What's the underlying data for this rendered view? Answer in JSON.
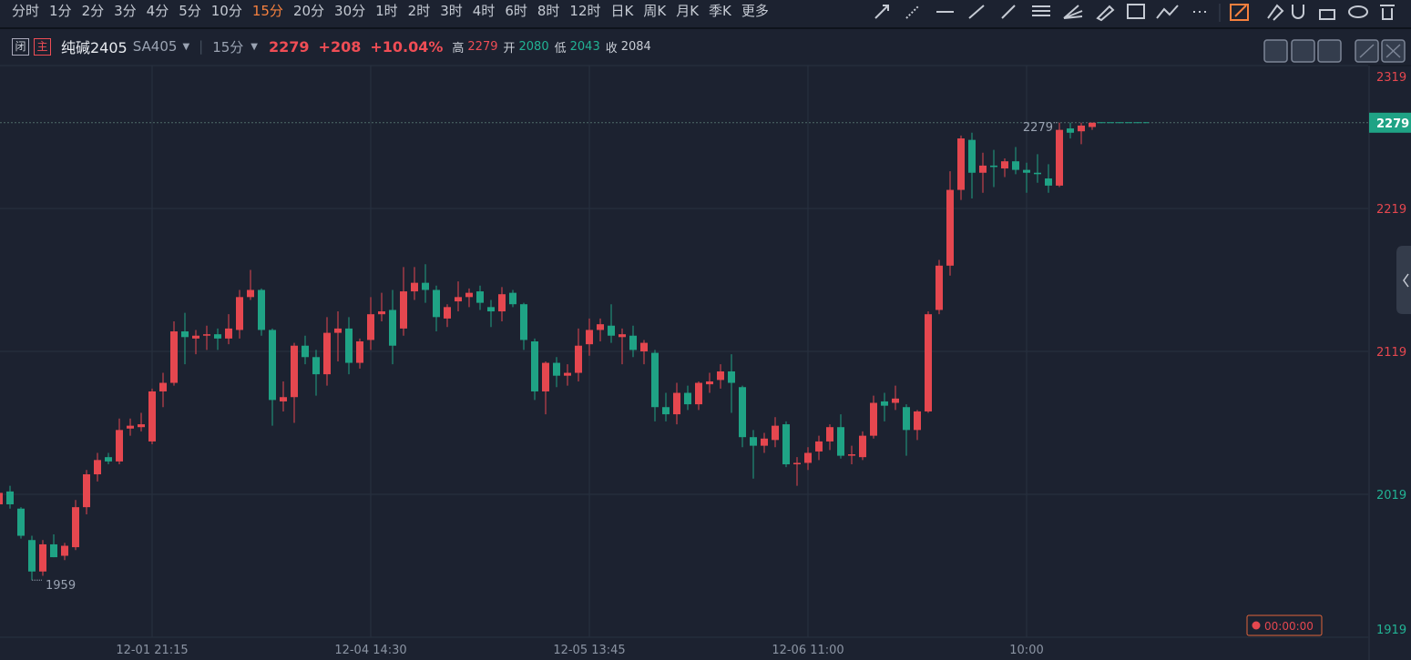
{
  "toolbar": {
    "periods": [
      "分时",
      "1分",
      "2分",
      "3分",
      "4分",
      "5分",
      "10分",
      "15分",
      "20分",
      "30分",
      "1时",
      "2时",
      "3时",
      "4时",
      "6时",
      "8时",
      "12时",
      "日K",
      "周K",
      "月K",
      "季K",
      "更多"
    ],
    "active": 7
  },
  "header": {
    "closed_badge": "闭",
    "main_badge": "主",
    "name": "纯碱2405",
    "code": "SA405",
    "period": "15分",
    "price": 2279,
    "change": "+208",
    "change_pct": "+10.04%",
    "high_label": "高",
    "high": 2279,
    "open_label": "开",
    "open": 2080,
    "low_label": "低",
    "low": 2043,
    "close_label": "收",
    "close": 2084
  },
  "chart_data": {
    "type": "candlestick",
    "categories": [
      null,
      null,
      null,
      null,
      null,
      null,
      null,
      null,
      null,
      null,
      null,
      null,
      null,
      null,
      "12-01 21:15",
      null,
      null,
      null,
      null,
      null,
      null,
      null,
      null,
      null,
      null,
      null,
      null,
      null,
      null,
      null,
      null,
      null,
      null,
      null,
      "12-04 14:30",
      null,
      null,
      null,
      null,
      null,
      null,
      null,
      null,
      null,
      null,
      null,
      null,
      null,
      null,
      null,
      null,
      null,
      null,
      null,
      "12-05 13:45",
      null,
      null,
      null,
      null,
      null,
      null,
      null,
      null,
      null,
      null,
      null,
      null,
      null,
      null,
      null,
      null,
      null,
      null,
      null,
      "12-06 11:00",
      null,
      null,
      null,
      null,
      null,
      null,
      null,
      null,
      null,
      null,
      null,
      null,
      null,
      null,
      null,
      null,
      null,
      null,
      null,
      "10:00",
      null,
      null,
      null,
      null,
      null,
      null
    ],
    "open": [
      2012,
      2021,
      2009,
      1987,
      1965,
      1984,
      1976,
      1982,
      2010,
      2033,
      2045,
      2042,
      2065,
      2066,
      2056,
      2091,
      2097,
      2133,
      2128,
      2130,
      2131,
      2128,
      2134,
      2157,
      2162,
      2134,
      2084,
      2087,
      2123,
      2115,
      2103,
      2132,
      2135,
      2111,
      2127,
      2145,
      2148,
      2135,
      2161,
      2167,
      2162,
      2142,
      2154,
      2157,
      2161,
      2150,
      2147,
      2160,
      2152,
      2126,
      2091,
      2111,
      2102,
      2104,
      2124,
      2134,
      2137,
      2129,
      2130,
      2119,
      2118,
      2080,
      2075,
      2090,
      2082,
      2096,
      2099,
      2105,
      2094,
      2059,
      2053,
      2057,
      2068,
      2040,
      2041,
      2049,
      2056,
      2066,
      2046,
      2045,
      2060,
      2084,
      2083,
      2080,
      2064,
      2077,
      2148,
      2179,
      2232,
      2267,
      2244,
      2249,
      2247,
      2252,
      2246,
      2244,
      2240,
      2235,
      2275,
      2273,
      2276
    ],
    "high": [
      2022,
      2025,
      2010,
      1990,
      1987,
      1991,
      1985,
      2015,
      2036,
      2048,
      2048,
      2072,
      2072,
      2076,
      2093,
      2104,
      2140,
      2146,
      2134,
      2137,
      2135,
      2145,
      2162,
      2176,
      2163,
      2135,
      2098,
      2125,
      2130,
      2120,
      2143,
      2147,
      2143,
      2128,
      2157,
      2160,
      2162,
      2178,
      2178,
      2180,
      2165,
      2152,
      2168,
      2163,
      2165,
      2155,
      2164,
      2162,
      2153,
      2128,
      2112,
      2115,
      2110,
      2135,
      2142,
      2142,
      2152,
      2135,
      2137,
      2127,
      2120,
      2090,
      2097,
      2095,
      2098,
      2104,
      2110,
      2117,
      2095,
      2064,
      2062,
      2073,
      2070,
      2045,
      2052,
      2060,
      2068,
      2075,
      2053,
      2063,
      2088,
      2090,
      2095,
      2082,
      2078,
      2147,
      2183,
      2245,
      2270,
      2272,
      2258,
      2260,
      2254,
      2262,
      2251,
      2257,
      2250,
      2279,
      2279,
      2279,
      2279
    ],
    "low": [
      2010,
      2009,
      1988,
      1959,
      1962,
      1975,
      1973,
      1980,
      2005,
      2028,
      2040,
      2040,
      2060,
      2063,
      2054,
      2080,
      2095,
      2110,
      2117,
      2120,
      2120,
      2124,
      2128,
      2155,
      2130,
      2067,
      2077,
      2069,
      2110,
      2088,
      2095,
      2112,
      2103,
      2107,
      2120,
      2140,
      2110,
      2130,
      2155,
      2153,
      2133,
      2136,
      2147,
      2150,
      2148,
      2136,
      2140,
      2150,
      2120,
      2085,
      2075,
      2094,
      2095,
      2098,
      2116,
      2126,
      2125,
      2110,
      2115,
      2110,
      2070,
      2070,
      2068,
      2078,
      2078,
      2090,
      2093,
      2076,
      2052,
      2030,
      2048,
      2052,
      2038,
      2025,
      2036,
      2043,
      2050,
      2044,
      2040,
      2043,
      2058,
      2070,
      2078,
      2046,
      2057,
      2076,
      2145,
      2172,
      2225,
      2226,
      2230,
      2234,
      2241,
      2243,
      2230,
      2237,
      2230,
      2234,
      2268,
      2264,
      2274
    ],
    "close": [
      2020,
      2012,
      1990,
      1965,
      1984,
      1975,
      1983,
      2010,
      2033,
      2043,
      2042,
      2064,
      2067,
      2068,
      2091,
      2097,
      2133,
      2129,
      2130,
      2131,
      2128,
      2135,
      2157,
      2162,
      2134,
      2085,
      2087,
      2123,
      2115,
      2103,
      2132,
      2135,
      2111,
      2126,
      2145,
      2147,
      2123,
      2161,
      2167,
      2162,
      2143,
      2150,
      2157,
      2160,
      2153,
      2147,
      2159,
      2152,
      2127,
      2091,
      2111,
      2102,
      2104,
      2123,
      2134,
      2138,
      2130,
      2131,
      2120,
      2125,
      2080,
      2075,
      2090,
      2082,
      2097,
      2098,
      2105,
      2097,
      2059,
      2053,
      2058,
      2067,
      2040,
      2041,
      2048,
      2056,
      2066,
      2046,
      2047,
      2060,
      2083,
      2081,
      2086,
      2064,
      2077,
      2145,
      2179,
      2232,
      2268,
      2244,
      2249,
      2248,
      2252,
      2246,
      2244,
      2243,
      2235,
      2274,
      2272,
      2277,
      2279
    ],
    "up_color": "#e5474f",
    "down_color": "#1fa385",
    "ylim": [
      1919,
      2319
    ],
    "yticks": [
      1919,
      2019,
      2119,
      2219,
      2319
    ],
    "grid": true,
    "high_marker": 2279,
    "low_marker": 1959,
    "last_price": 2279,
    "timer": "00:00:00"
  }
}
